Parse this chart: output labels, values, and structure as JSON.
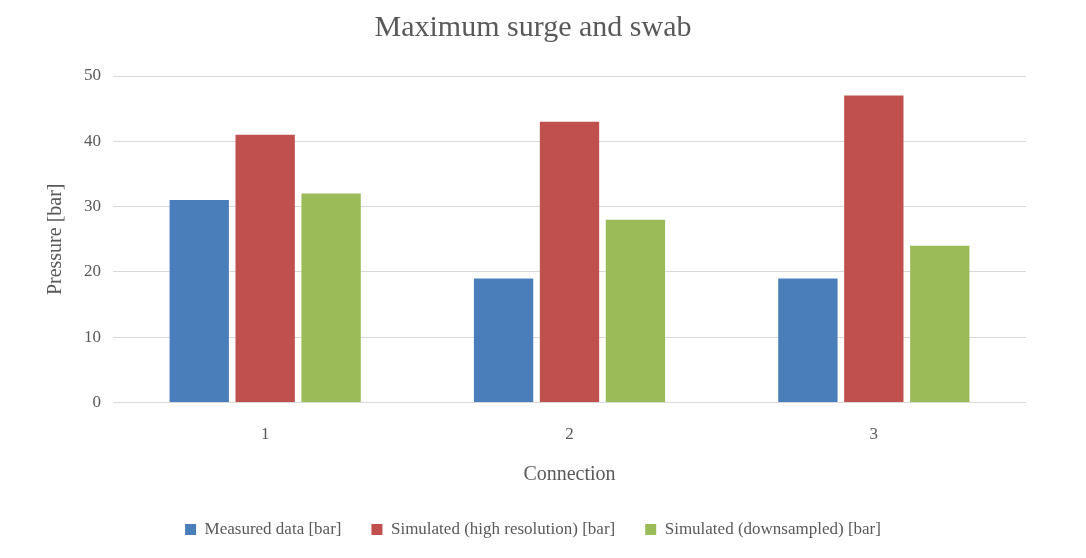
{
  "chart_data": {
    "type": "bar",
    "title": "Maximum surge and swab",
    "xlabel": "Connection",
    "ylabel": "Pressure [bar]",
    "categories": [
      "1",
      "2",
      "3"
    ],
    "series": [
      {
        "name": "Measured data [bar]",
        "color": "#4a7ebb",
        "values": [
          31,
          19,
          19
        ]
      },
      {
        "name": "Simulated (high resolution) [bar]",
        "color": "#c0504d",
        "values": [
          41,
          43,
          47
        ]
      },
      {
        "name": "Simulated (downsampled) [bar]",
        "color": "#9bbb59",
        "values": [
          32,
          28,
          24
        ]
      }
    ],
    "ylim": [
      0,
      50
    ],
    "yticks": [
      0,
      10,
      20,
      30,
      40,
      50
    ],
    "grid": "y",
    "legend": "bottom"
  }
}
